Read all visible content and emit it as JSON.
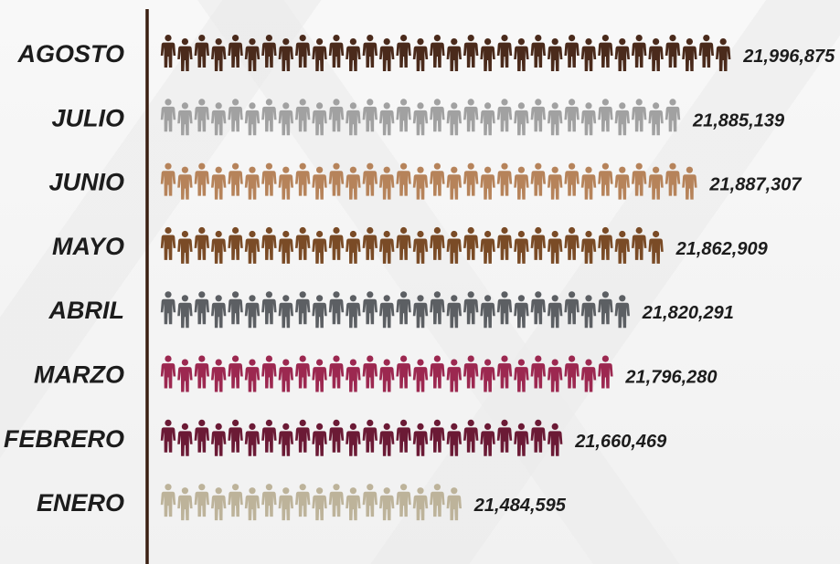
{
  "chart_data": {
    "type": "bar",
    "title": "",
    "xlabel": "",
    "ylabel": "",
    "categories": [
      "AGOSTO",
      "JULIO",
      "JUNIO",
      "MAYO",
      "ABRIL",
      "MARZO",
      "FEBRERO",
      "ENERO"
    ],
    "values": [
      21996875,
      21885139,
      21887307,
      21862909,
      21820291,
      21796280,
      21660469,
      21484595
    ],
    "value_labels": [
      "21,996,875",
      "21,885,139",
      "21,887,307",
      "21,862,909",
      "21,820,291",
      "21,796,280",
      "21,660,469",
      "21,484,595"
    ],
    "icon_counts": [
      34,
      31,
      32,
      30,
      28,
      27,
      24,
      18
    ],
    "icon": "person-pair-icon",
    "colors": [
      "#4a2a1b",
      "#a1a1a1",
      "#b6835a",
      "#7a4b26",
      "#5c5f63",
      "#9c2850",
      "#6b1a35",
      "#bdb39a"
    ],
    "grid": false,
    "legend": "none"
  }
}
